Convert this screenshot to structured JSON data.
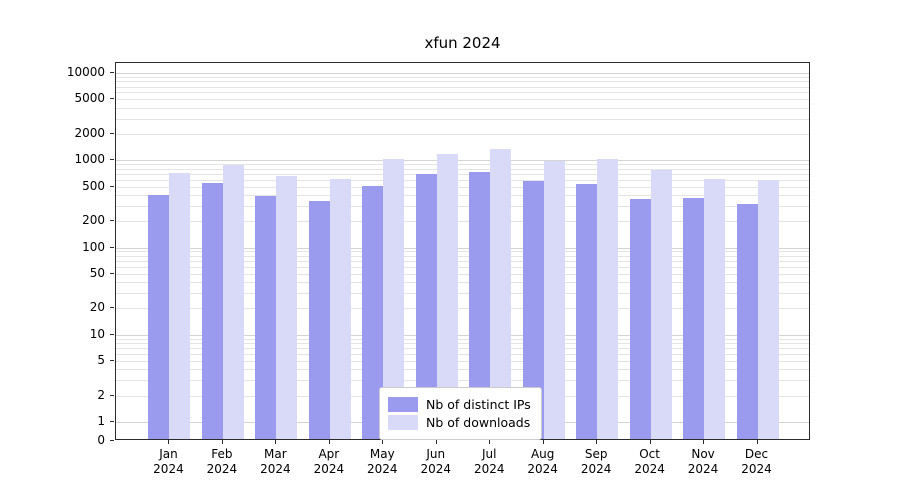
{
  "chart_data": {
    "type": "bar",
    "title": "xfun 2024",
    "year": "2024",
    "months": [
      "Jan",
      "Feb",
      "Mar",
      "Apr",
      "May",
      "Jun",
      "Jul",
      "Aug",
      "Sep",
      "Oct",
      "Nov",
      "Dec"
    ],
    "categories": [
      "Jan 2024",
      "Feb 2024",
      "Mar 2024",
      "Apr 2024",
      "May 2024",
      "Jun 2024",
      "Jul 2024",
      "Aug 2024",
      "Sep 2024",
      "Oct 2024",
      "Nov 2024",
      "Dec 2024"
    ],
    "series": [
      {
        "name": "Nb of distinct IPs",
        "color": "#9a9aee",
        "values": [
          390,
          530,
          380,
          330,
          500,
          680,
          720,
          570,
          520,
          350,
          360,
          310
        ]
      },
      {
        "name": "Nb of downloads",
        "color": "#d9d9f8",
        "values": [
          690,
          850,
          650,
          600,
          1020,
          1150,
          1300,
          950,
          1000,
          760,
          600,
          580
        ]
      }
    ],
    "yscale": "symlog",
    "y_ticks": [
      10000,
      5000,
      2000,
      1000,
      500,
      200,
      100,
      50,
      20,
      10,
      5,
      2,
      1,
      0
    ],
    "xlabel": "",
    "ylabel": "",
    "grid": true,
    "legend_position": "lower-center-inside"
  }
}
